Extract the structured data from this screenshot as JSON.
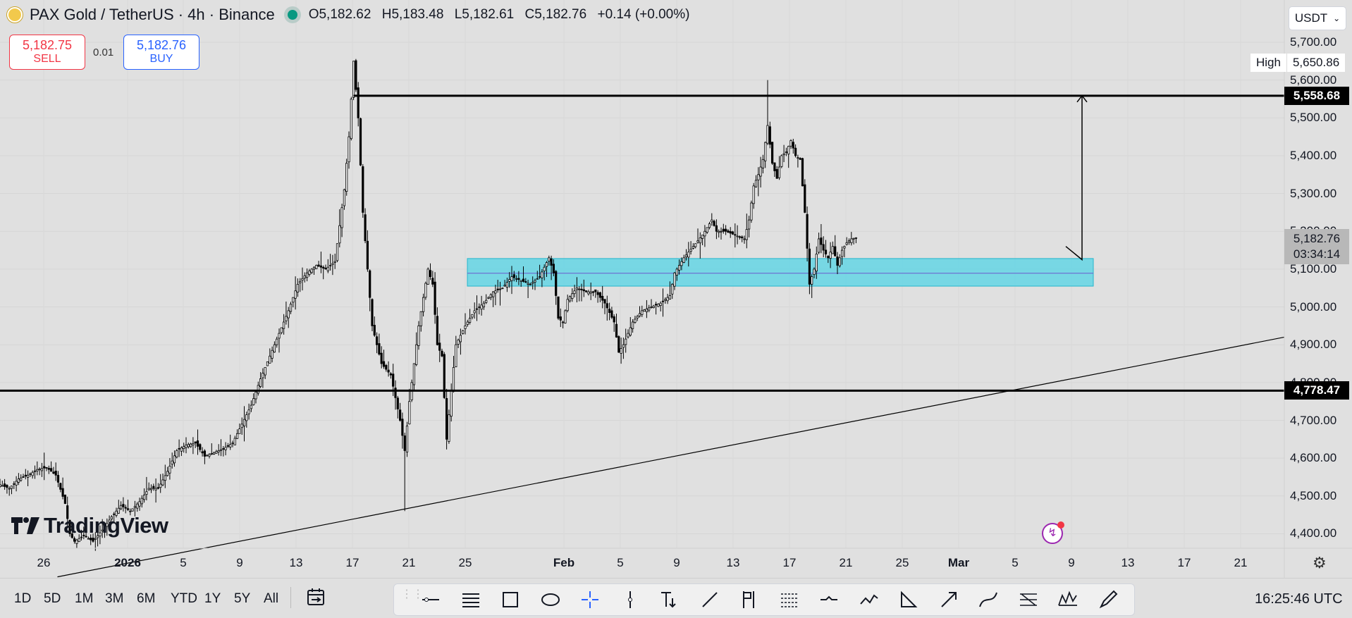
{
  "header": {
    "symbol_title": "PAX Gold / TetherUS · 4h · Binance",
    "ohlc": {
      "open": "O5,182.62",
      "high": "H5,183.48",
      "low": "L5,182.61",
      "close": "C5,182.76",
      "change": "+0.14 (+0.00%)"
    }
  },
  "trade": {
    "sell_price": "5,182.75",
    "sell_label": "SELL",
    "spread": "0.01",
    "buy_price": "5,182.76",
    "buy_label": "BUY"
  },
  "currency_selector": "USDT",
  "chart_data": {
    "type": "candlestick",
    "timeframe": "4h",
    "exchange": "Binance",
    "y_axis": {
      "ticks": [
        "5,700.00",
        "5,600.00",
        "5,500.00",
        "5,400.00",
        "5,300.00",
        "5,200.00",
        "5,100.00",
        "5,000.00",
        "4,900.00",
        "4,800.00",
        "4,700.00",
        "4,600.00",
        "4,500.00",
        "4,400.00"
      ],
      "range": [
        4380,
        5720
      ]
    },
    "x_axis": {
      "ticks": [
        "26",
        "2026",
        "5",
        "9",
        "13",
        "17",
        "21",
        "25",
        "Feb",
        "5",
        "9",
        "13",
        "17",
        "21",
        "25",
        "Mar",
        "5",
        "9",
        "13",
        "17",
        "21"
      ],
      "bold_ticks": [
        "2026",
        "Feb",
        "Mar"
      ]
    },
    "close_path": [
      [
        0,
        4530
      ],
      [
        4,
        4520
      ],
      [
        8,
        4545
      ],
      [
        12,
        4555
      ],
      [
        16,
        4570
      ],
      [
        20,
        4575
      ],
      [
        24,
        4555
      ],
      [
        28,
        4480
      ],
      [
        30,
        4400
      ],
      [
        32,
        4380
      ],
      [
        36,
        4395
      ],
      [
        40,
        4380
      ],
      [
        44,
        4410
      ],
      [
        48,
        4445
      ],
      [
        52,
        4475
      ],
      [
        56,
        4460
      ],
      [
        60,
        4485
      ],
      [
        64,
        4520
      ],
      [
        68,
        4520
      ],
      [
        72,
        4565
      ],
      [
        76,
        4620
      ],
      [
        80,
        4635
      ],
      [
        84,
        4640
      ],
      [
        88,
        4605
      ],
      [
        92,
        4615
      ],
      [
        96,
        4625
      ],
      [
        100,
        4640
      ],
      [
        104,
        4690
      ],
      [
        108,
        4740
      ],
      [
        112,
        4810
      ],
      [
        116,
        4870
      ],
      [
        120,
        4930
      ],
      [
        124,
        4990
      ],
      [
        128,
        5060
      ],
      [
        132,
        5090
      ],
      [
        136,
        5110
      ],
      [
        140,
        5100
      ],
      [
        144,
        5120
      ],
      [
        148,
        5310
      ],
      [
        150,
        5450
      ],
      [
        152,
        5650
      ],
      [
        154,
        5500
      ],
      [
        156,
        5250
      ],
      [
        158,
        5100
      ],
      [
        160,
        4950
      ],
      [
        164,
        4850
      ],
      [
        168,
        4820
      ],
      [
        172,
        4700
      ],
      [
        174,
        4620
      ],
      [
        176,
        4750
      ],
      [
        180,
        4950
      ],
      [
        184,
        5100
      ],
      [
        186,
        5060
      ],
      [
        188,
        4900
      ],
      [
        190,
        4870
      ],
      [
        192,
        4650
      ],
      [
        194,
        4780
      ],
      [
        196,
        4900
      ],
      [
        200,
        4950
      ],
      [
        204,
        4990
      ],
      [
        208,
        5010
      ],
      [
        212,
        5040
      ],
      [
        216,
        5050
      ],
      [
        220,
        5080
      ],
      [
        224,
        5070
      ],
      [
        228,
        5060
      ],
      [
        232,
        5080
      ],
      [
        236,
        5130
      ],
      [
        238,
        5090
      ],
      [
        240,
        4970
      ],
      [
        242,
        4960
      ],
      [
        244,
        5020
      ],
      [
        248,
        5050
      ],
      [
        252,
        5040
      ],
      [
        256,
        5040
      ],
      [
        260,
        5010
      ],
      [
        264,
        4960
      ],
      [
        266,
        4880
      ],
      [
        268,
        4900
      ],
      [
        272,
        4960
      ],
      [
        276,
        4990
      ],
      [
        280,
        5000
      ],
      [
        284,
        5010
      ],
      [
        288,
        5030
      ],
      [
        290,
        5090
      ],
      [
        294,
        5130
      ],
      [
        298,
        5160
      ],
      [
        302,
        5190
      ],
      [
        306,
        5230
      ],
      [
        308,
        5200
      ],
      [
        312,
        5200
      ],
      [
        316,
        5190
      ],
      [
        320,
        5180
      ],
      [
        322,
        5230
      ],
      [
        324,
        5320
      ],
      [
        326,
        5350
      ],
      [
        328,
        5390
      ],
      [
        330,
        5480
      ],
      [
        332,
        5380
      ],
      [
        334,
        5340
      ],
      [
        336,
        5400
      ],
      [
        338,
        5410
      ],
      [
        340,
        5440
      ],
      [
        342,
        5400
      ],
      [
        344,
        5390
      ],
      [
        346,
        5250
      ],
      [
        348,
        5060
      ],
      [
        350,
        5100
      ],
      [
        352,
        5180
      ],
      [
        354,
        5150
      ],
      [
        356,
        5130
      ],
      [
        358,
        5160
      ],
      [
        360,
        5110
      ],
      [
        362,
        5150
      ],
      [
        364,
        5170
      ],
      [
        366,
        5180
      ],
      [
        368,
        5183
      ]
    ],
    "high": 5650.86,
    "current_price": "5,182.76",
    "countdown": "03:34:14",
    "drawings": {
      "horizontal_levels": [
        5558.68,
        4778.47
      ],
      "zone": [
        5055,
        5128
      ],
      "zone_midline": 5089,
      "trendline": [
        [
          -45,
          4286
        ],
        [
          475,
          4920
        ]
      ],
      "projection_arrow": [
        [
          370,
          5160
        ],
        [
          377,
          5125
        ],
        [
          377,
          5558.68
        ]
      ]
    },
    "labels": {
      "level_upper": "5,558.68",
      "level_lower": "4,778.47",
      "high_label": "High",
      "high_value": "5,650.86"
    }
  },
  "branding": "TradingView",
  "bottom_bar": {
    "ranges": [
      "1D",
      "5D",
      "1M",
      "3M",
      "6M",
      "YTD",
      "1Y",
      "5Y",
      "All"
    ],
    "time": "16:25:46 UTC"
  },
  "toolbar_icons": [
    "horizontal-ray-icon",
    "parallel-lines-icon",
    "rectangle-icon",
    "ellipse-icon",
    "crosshair-icon",
    "vertical-line-icon",
    "text-anchor-icon",
    "trendline-icon",
    "flag-icon",
    "fib-retracement-icon",
    "path-icon",
    "polyline-icon",
    "triangle-icon",
    "arrow-icon",
    "curve-icon",
    "pitchfork-icon",
    "pattern-icon",
    "brush-icon"
  ]
}
